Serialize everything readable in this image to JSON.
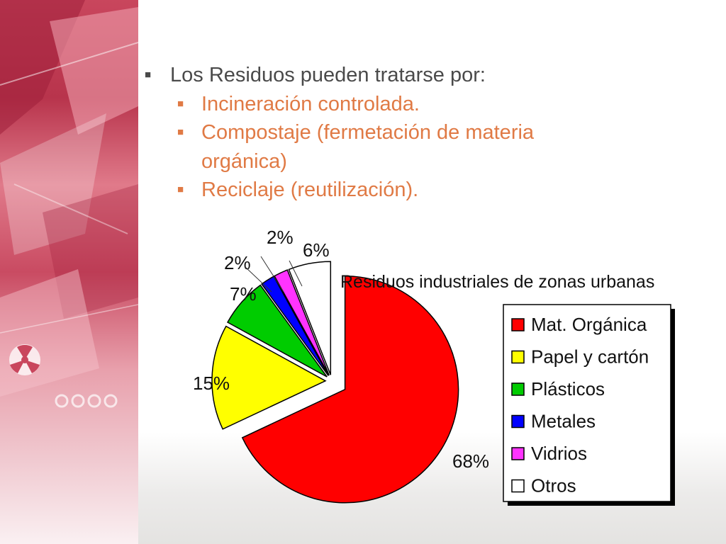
{
  "slide": {
    "bullets": [
      {
        "level": 1,
        "text": "Los Residuos pueden tratarse por:"
      },
      {
        "level": 2,
        "text": "Incineración controlada."
      },
      {
        "level": 2,
        "text": "Compostaje (fermetación de materia"
      },
      {
        "level": 2,
        "text": "orgánica)",
        "continuation": true
      },
      {
        "level": 2,
        "text": "Reciclaje (reutilización)."
      }
    ],
    "colors": {
      "bullet_text_level1": "#4a4a4a",
      "bullet_text_level2": "#e07a45",
      "left_panel_accent": "#c9465d"
    }
  },
  "chart_data": {
    "type": "pie",
    "title": "Residuos industriales de zonas urbanas",
    "legend_position": "right",
    "categories": [
      "Mat. Orgánica",
      "Papel y cartón",
      "Plásticos",
      "Metales",
      "Vidrios",
      "Otros"
    ],
    "values": [
      68,
      15,
      7,
      2,
      2,
      6
    ],
    "data_labels": [
      "68%",
      "15%",
      "7%",
      "2%",
      "2%",
      "6%"
    ],
    "colors": [
      "#ff0000",
      "#ffff00",
      "#00cc00",
      "#0000ff",
      "#ff33ff",
      "#ffffff"
    ],
    "exploded": true
  }
}
